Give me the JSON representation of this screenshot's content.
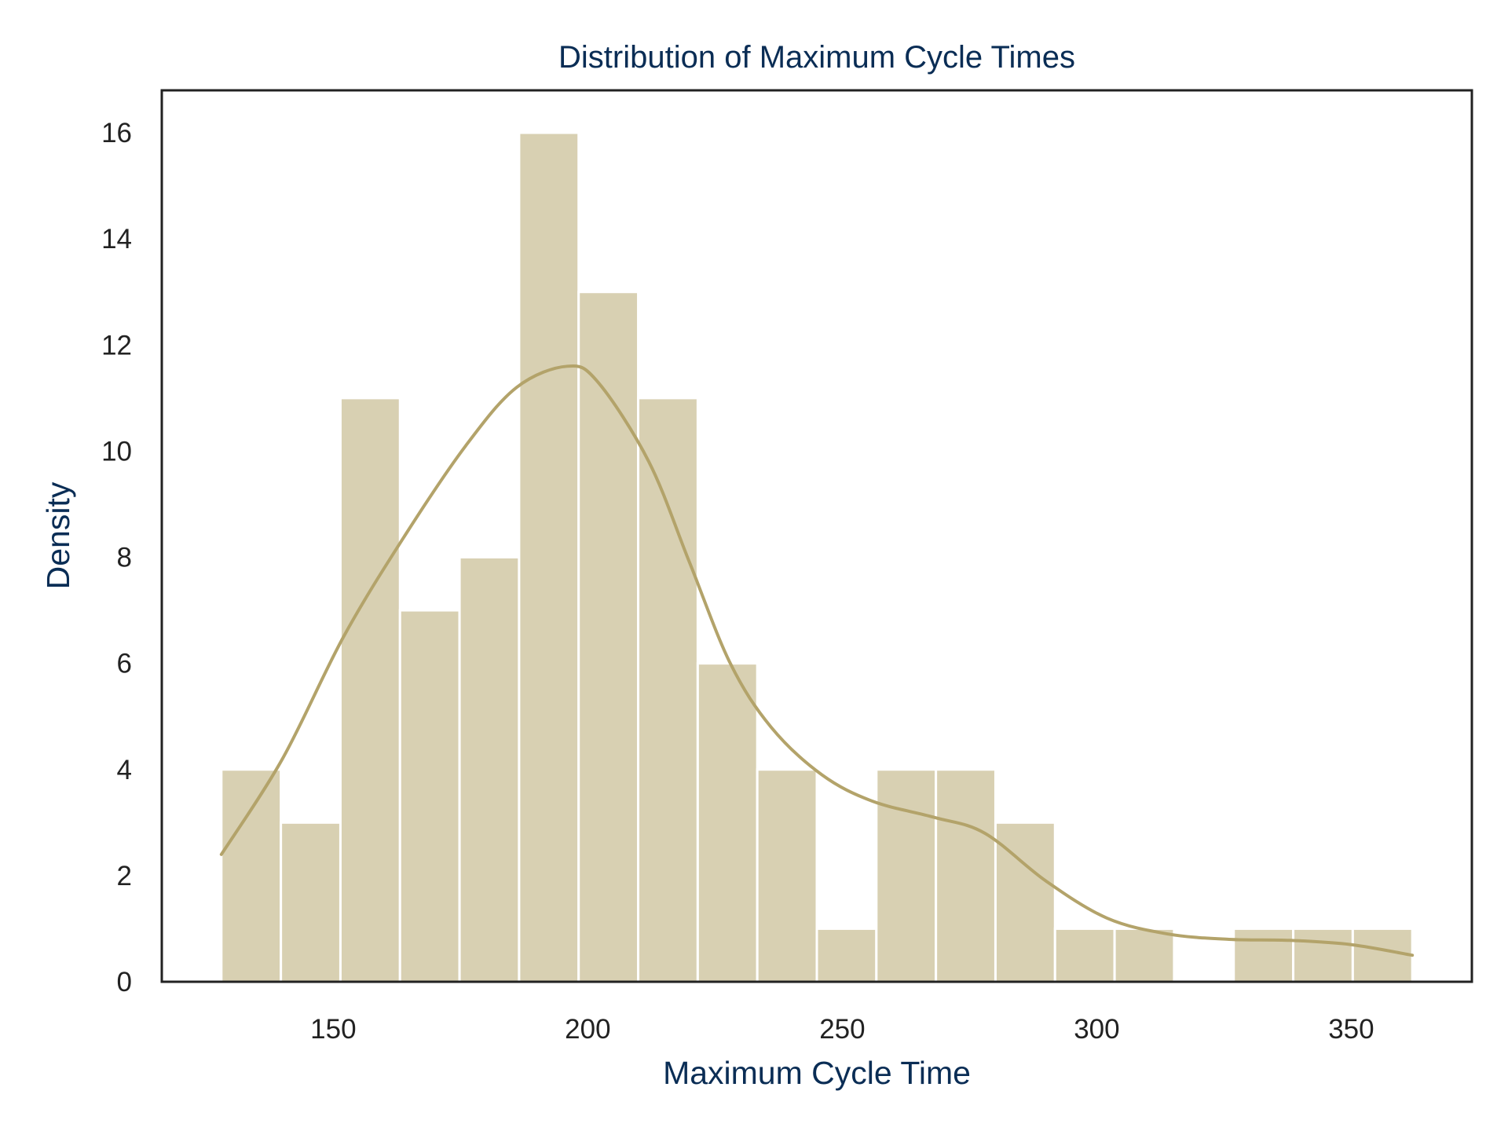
{
  "chart_data": {
    "type": "bar",
    "title": "Distribution of Maximum Cycle Times",
    "xlabel": "Maximum Cycle Time",
    "ylabel": "Density",
    "xlim": [
      116.3,
      373.7
    ],
    "ylim": [
      0,
      16.8
    ],
    "xticks": [
      150,
      200,
      250,
      300,
      350
    ],
    "yticks": [
      0,
      2,
      4,
      6,
      8,
      10,
      12,
      14,
      16
    ],
    "bins": [
      {
        "start": 128.0,
        "end": 139.7,
        "value": 4
      },
      {
        "start": 139.7,
        "end": 151.4,
        "value": 3
      },
      {
        "start": 151.4,
        "end": 163.1,
        "value": 11
      },
      {
        "start": 163.1,
        "end": 174.8,
        "value": 7
      },
      {
        "start": 174.8,
        "end": 186.5,
        "value": 8
      },
      {
        "start": 186.5,
        "end": 198.2,
        "value": 16
      },
      {
        "start": 198.2,
        "end": 209.9,
        "value": 13
      },
      {
        "start": 209.9,
        "end": 221.6,
        "value": 11
      },
      {
        "start": 221.6,
        "end": 233.3,
        "value": 6
      },
      {
        "start": 233.3,
        "end": 245.0,
        "value": 4
      },
      {
        "start": 245.0,
        "end": 256.7,
        "value": 1
      },
      {
        "start": 256.7,
        "end": 268.4,
        "value": 4
      },
      {
        "start": 268.4,
        "end": 280.1,
        "value": 4
      },
      {
        "start": 280.1,
        "end": 291.8,
        "value": 3
      },
      {
        "start": 291.8,
        "end": 303.5,
        "value": 1
      },
      {
        "start": 303.5,
        "end": 315.2,
        "value": 1
      },
      {
        "start": 315.2,
        "end": 326.9,
        "value": 0
      },
      {
        "start": 326.9,
        "end": 338.6,
        "value": 1
      },
      {
        "start": 338.6,
        "end": 350.3,
        "value": 1
      },
      {
        "start": 350.3,
        "end": 362.0,
        "value": 1
      }
    ],
    "kde": {
      "x": [
        128,
        140,
        152,
        164,
        176,
        186,
        196,
        202,
        212,
        220,
        228,
        236,
        246,
        256,
        268,
        278,
        290,
        302,
        314,
        326,
        338,
        350,
        362
      ],
      "y": [
        2.4,
        4.2,
        6.5,
        8.4,
        10.1,
        11.2,
        11.6,
        11.3,
        9.8,
        7.9,
        6.0,
        4.8,
        3.9,
        3.4,
        3.1,
        2.8,
        1.9,
        1.2,
        0.9,
        0.8,
        0.78,
        0.7,
        0.5
      ]
    },
    "grid": false,
    "legend": "none",
    "colors": {
      "bar_fill": "#d8d0b2",
      "bar_edge": "#ffffff",
      "kde_line": "#b3a36a",
      "title": "#0a2d55",
      "axis_label": "#0a2d55",
      "frame": "#222222"
    }
  }
}
